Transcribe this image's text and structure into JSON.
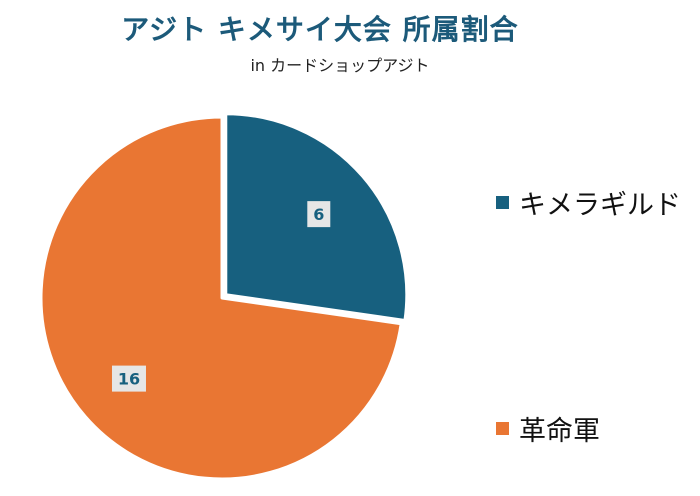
{
  "chart_data": {
    "type": "pie",
    "title": "アジト キメサイ大会 所属割合",
    "subtitle": "in カードショップアジト",
    "categories": [
      "キメラギルド",
      "革命軍"
    ],
    "values": [
      6,
      16
    ],
    "colors": [
      "#17607f",
      "#e97633"
    ],
    "data_labels": [
      "6",
      "16"
    ],
    "legend_position": "right",
    "exploded_slice": "キメラギルド"
  }
}
